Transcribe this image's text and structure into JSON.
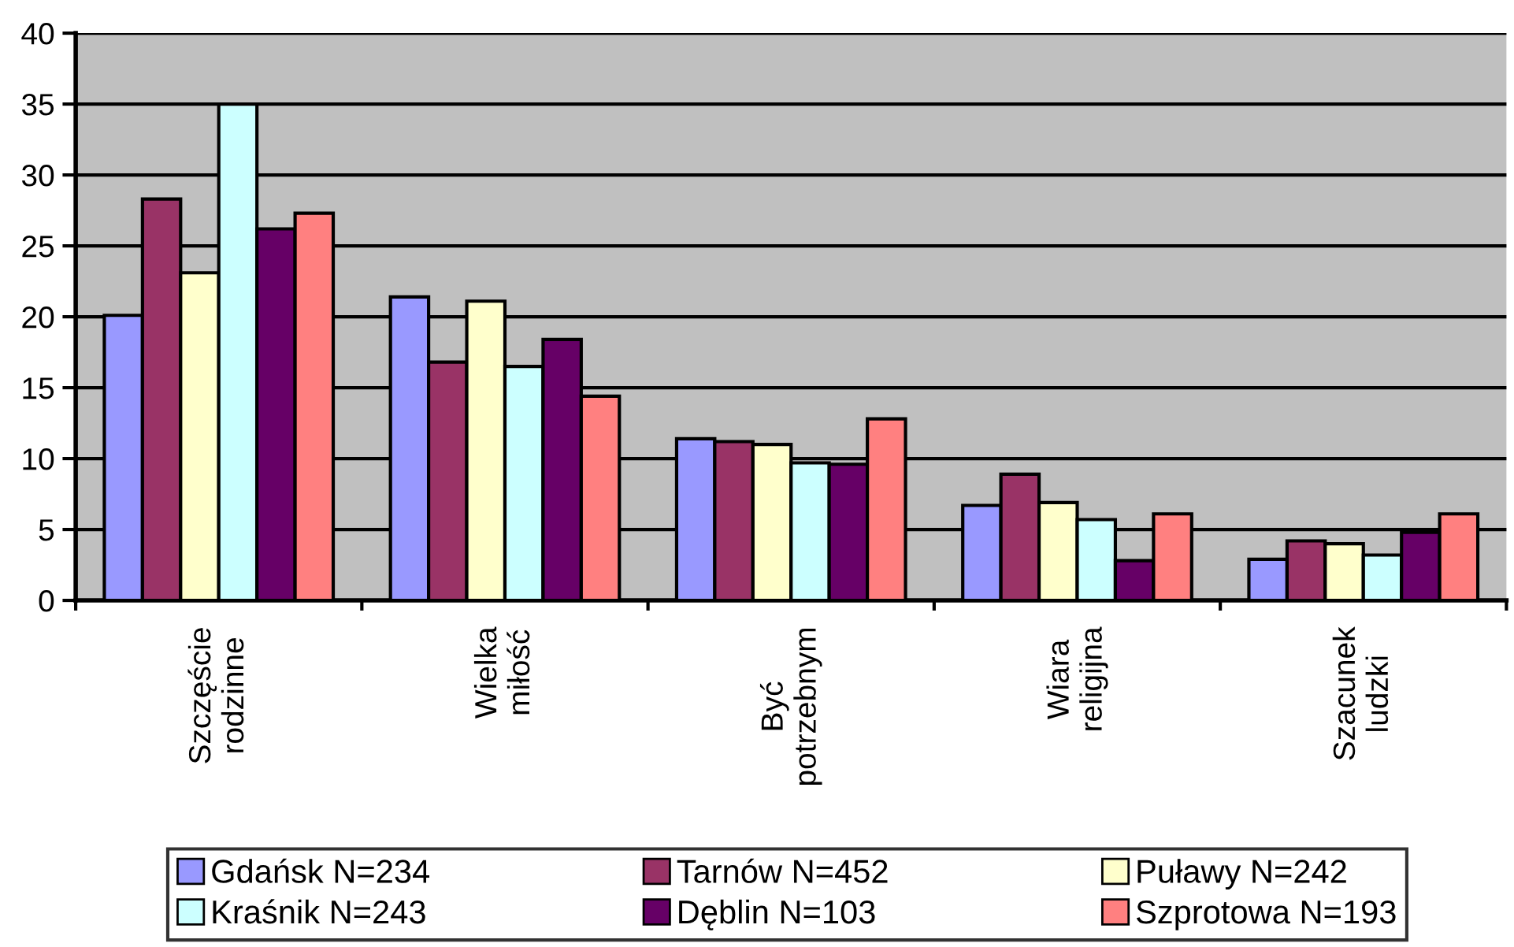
{
  "chart_data": {
    "type": "bar",
    "categories": [
      "Szczęście\nrodzinne",
      "Wielka\nmiłość",
      "Być\npotrzebnym",
      "Wiara\nreligijna",
      "Szacunek\nludzki"
    ],
    "series": [
      {
        "name": "Gdańsk N=234",
        "color": "#9999ff",
        "values": [
          20.1,
          21.4,
          11.4,
          6.7,
          2.9
        ]
      },
      {
        "name": "Tarnów N=452",
        "color": "#993366",
        "values": [
          28.3,
          16.8,
          11.2,
          8.9,
          4.2
        ]
      },
      {
        "name": "Puławy N=242",
        "color": "#ffffcc",
        "values": [
          23.1,
          21.1,
          11.0,
          6.9,
          4.0
        ]
      },
      {
        "name": "Kraśnik N=243",
        "color": "#ccffff",
        "values": [
          35.0,
          16.5,
          9.7,
          5.7,
          3.2
        ]
      },
      {
        "name": "Dęblin N=103",
        "color": "#660066",
        "values": [
          26.2,
          18.4,
          9.6,
          2.8,
          4.8
        ]
      },
      {
        "name": "Szprotowa N=193",
        "color": "#ff8080",
        "values": [
          27.3,
          14.4,
          12.8,
          6.1,
          6.1
        ]
      }
    ],
    "ylim": [
      0,
      40
    ],
    "yticks": [
      0,
      5,
      10,
      15,
      20,
      25,
      30,
      35,
      40
    ],
    "grid": "y",
    "legend": "bottom"
  }
}
